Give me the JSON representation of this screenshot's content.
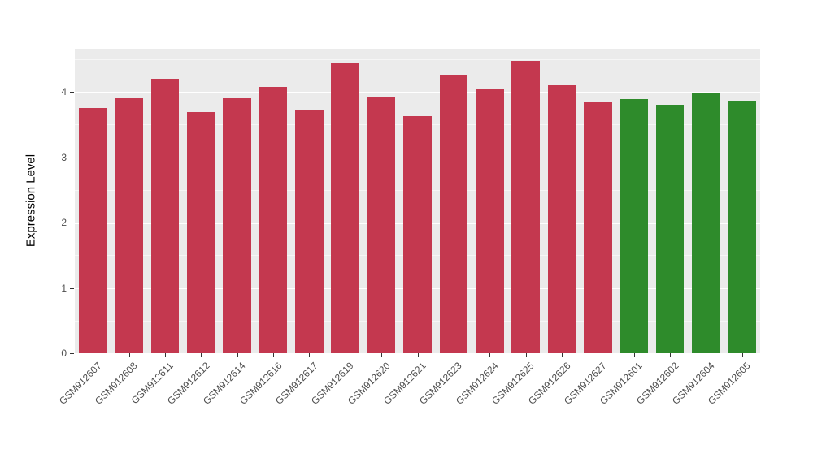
{
  "chart_data": {
    "type": "bar",
    "title": "",
    "xlabel": "",
    "ylabel": "Expression Level",
    "ylim": [
      0,
      4.66
    ],
    "yticks": [
      0,
      1,
      2,
      3,
      4
    ],
    "grid": true,
    "panel_background": "#EBEBEB",
    "categories": [
      "GSM912607",
      "GSM912608",
      "GSM912611",
      "GSM912612",
      "GSM912614",
      "GSM912616",
      "GSM912617",
      "GSM912619",
      "GSM912620",
      "GSM912621",
      "GSM912623",
      "GSM912624",
      "GSM912625",
      "GSM912626",
      "GSM912627",
      "GSM912601",
      "GSM912602",
      "GSM912604",
      "GSM912605"
    ],
    "values": [
      3.75,
      3.9,
      4.2,
      3.69,
      3.9,
      4.07,
      3.72,
      4.45,
      3.91,
      3.63,
      4.26,
      4.05,
      4.48,
      4.1,
      3.84,
      3.89,
      3.8,
      3.99,
      3.87
    ],
    "bar_groups": [
      "red",
      "red",
      "red",
      "red",
      "red",
      "red",
      "red",
      "red",
      "red",
      "red",
      "red",
      "red",
      "red",
      "red",
      "red",
      "green",
      "green",
      "green",
      "green"
    ],
    "group_colors": {
      "red": "#C4384F",
      "green": "#2E8B2B"
    }
  }
}
